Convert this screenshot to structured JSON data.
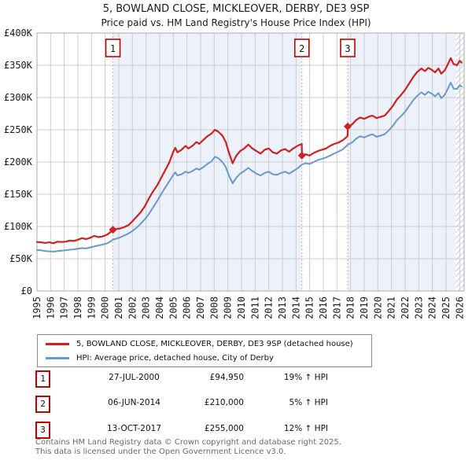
{
  "chart_data": {
    "type": "line",
    "title": "5, BOWLAND CLOSE, MICKLEOVER, DERBY, DE3 9SP",
    "subtitle": "Price paid vs. HM Land Registry's House Price Index (HPI)",
    "xlim": [
      1995,
      2026.33
    ],
    "ylim": [
      0,
      400000
    ],
    "grid": true,
    "legend_position": "below",
    "yticks": [
      {
        "value": 0,
        "label": "£0"
      },
      {
        "value": 50000,
        "label": "£50K"
      },
      {
        "value": 100000,
        "label": "£100K"
      },
      {
        "value": 150000,
        "label": "£150K"
      },
      {
        "value": 200000,
        "label": "£200K"
      },
      {
        "value": 250000,
        "label": "£250K"
      },
      {
        "value": 300000,
        "label": "£300K"
      },
      {
        "value": 350000,
        "label": "£350K"
      },
      {
        "value": 400000,
        "label": "£400K"
      }
    ],
    "xticks": [
      1995,
      1996,
      1997,
      1998,
      1999,
      2000,
      2001,
      2002,
      2003,
      2004,
      2005,
      2006,
      2007,
      2008,
      2009,
      2010,
      2011,
      2012,
      2013,
      2014,
      2015,
      2016,
      2017,
      2018,
      2019,
      2020,
      2021,
      2022,
      2023,
      2024,
      2025,
      2026
    ],
    "colors": {
      "price_paid": "#cc2222",
      "hpi": "#6699cc",
      "sale_line": "#f29a9a",
      "band": "#edf1fa",
      "grid": "#cccccc",
      "spine": "#aaaaaa",
      "hatch": "#c9cdd6",
      "box_border": "#c00000"
    },
    "ownership_bands": [
      {
        "from": 2000.57,
        "to": 2014.43
      },
      {
        "from": 2017.79,
        "to": 2025.7
      }
    ],
    "hatch_from": 2025.7,
    "sales": [
      {
        "num": "1",
        "x": 2000.57,
        "price": 94950
      },
      {
        "num": "2",
        "x": 2014.43,
        "price": 210000
      },
      {
        "num": "3",
        "x": 2017.79,
        "price": 255000
      }
    ],
    "series": [
      {
        "name": "5, BOWLAND CLOSE, MICKLEOVER, DERBY, DE3 9SP (detached house)",
        "color_key": "price_paid",
        "width": 2.2,
        "points": [
          [
            1995.0,
            76000
          ],
          [
            1995.3,
            75500
          ],
          [
            1995.6,
            74500
          ],
          [
            1995.9,
            75500
          ],
          [
            1996.2,
            74000
          ],
          [
            1996.5,
            76500
          ],
          [
            1996.8,
            76000
          ],
          [
            1997.1,
            76500
          ],
          [
            1997.4,
            78000
          ],
          [
            1997.7,
            77500
          ],
          [
            1998.0,
            79500
          ],
          [
            1998.3,
            82000
          ],
          [
            1998.6,
            80500
          ],
          [
            1998.9,
            82500
          ],
          [
            1999.2,
            85500
          ],
          [
            1999.5,
            83500
          ],
          [
            1999.8,
            84500
          ],
          [
            2000.1,
            87000
          ],
          [
            2000.35,
            90500
          ],
          [
            2000.57,
            94950
          ],
          [
            2000.8,
            96000
          ],
          [
            2001.1,
            97000
          ],
          [
            2001.4,
            99000
          ],
          [
            2001.7,
            102000
          ],
          [
            2002.0,
            108000
          ],
          [
            2002.3,
            115000
          ],
          [
            2002.6,
            122000
          ],
          [
            2002.9,
            131000
          ],
          [
            2003.2,
            143000
          ],
          [
            2003.5,
            154000
          ],
          [
            2003.8,
            163000
          ],
          [
            2004.1,
            175000
          ],
          [
            2004.4,
            187000
          ],
          [
            2004.7,
            199000
          ],
          [
            2005.0,
            216000
          ],
          [
            2005.15,
            222000
          ],
          [
            2005.3,
            215000
          ],
          [
            2005.6,
            219000
          ],
          [
            2005.9,
            225000
          ],
          [
            2006.1,
            221000
          ],
          [
            2006.4,
            225000
          ],
          [
            2006.7,
            231000
          ],
          [
            2006.9,
            228000
          ],
          [
            2007.2,
            234000
          ],
          [
            2007.5,
            240000
          ],
          [
            2007.8,
            244000
          ],
          [
            2008.05,
            250000
          ],
          [
            2008.3,
            247000
          ],
          [
            2008.6,
            241000
          ],
          [
            2008.85,
            231000
          ],
          [
            2009.1,
            213000
          ],
          [
            2009.35,
            198000
          ],
          [
            2009.6,
            209000
          ],
          [
            2009.9,
            217000
          ],
          [
            2010.2,
            221000
          ],
          [
            2010.5,
            227000
          ],
          [
            2010.8,
            221000
          ],
          [
            2011.1,
            217000
          ],
          [
            2011.4,
            213000
          ],
          [
            2011.7,
            219000
          ],
          [
            2012.0,
            221000
          ],
          [
            2012.3,
            215000
          ],
          [
            2012.6,
            213000
          ],
          [
            2012.9,
            218000
          ],
          [
            2013.2,
            220000
          ],
          [
            2013.5,
            216000
          ],
          [
            2013.8,
            221000
          ],
          [
            2014.1,
            225000
          ],
          [
            2014.42,
            228000
          ],
          [
            2014.44,
            210000
          ],
          [
            2014.7,
            212000
          ],
          [
            2015.0,
            210000
          ],
          [
            2015.3,
            214000
          ],
          [
            2015.6,
            217000
          ],
          [
            2015.9,
            219000
          ],
          [
            2016.2,
            221000
          ],
          [
            2016.5,
            225000
          ],
          [
            2016.8,
            228000
          ],
          [
            2017.1,
            230000
          ],
          [
            2017.45,
            234000
          ],
          [
            2017.78,
            240000
          ],
          [
            2017.8,
            255000
          ],
          [
            2018.1,
            258000
          ],
          [
            2018.4,
            265000
          ],
          [
            2018.7,
            269000
          ],
          [
            2019.0,
            267000
          ],
          [
            2019.3,
            270000
          ],
          [
            2019.6,
            272000
          ],
          [
            2019.9,
            268000
          ],
          [
            2020.2,
            270000
          ],
          [
            2020.5,
            272000
          ],
          [
            2020.8,
            279000
          ],
          [
            2021.1,
            287000
          ],
          [
            2021.4,
            297000
          ],
          [
            2021.7,
            304000
          ],
          [
            2022.0,
            312000
          ],
          [
            2022.3,
            322000
          ],
          [
            2022.6,
            332000
          ],
          [
            2022.9,
            340000
          ],
          [
            2023.2,
            345000
          ],
          [
            2023.45,
            341000
          ],
          [
            2023.7,
            346000
          ],
          [
            2023.95,
            343000
          ],
          [
            2024.2,
            339000
          ],
          [
            2024.45,
            345000
          ],
          [
            2024.65,
            337000
          ],
          [
            2024.9,
            342000
          ],
          [
            2025.1,
            350000
          ],
          [
            2025.35,
            361000
          ],
          [
            2025.55,
            352000
          ],
          [
            2025.8,
            350000
          ],
          [
            2026.0,
            357000
          ],
          [
            2026.15,
            354000
          ]
        ]
      },
      {
        "name": "HPI: Average price, detached house, City of Derby",
        "color_key": "hpi",
        "width": 2,
        "points": [
          [
            1995.0,
            63500
          ],
          [
            1995.3,
            63000
          ],
          [
            1995.6,
            62000
          ],
          [
            1995.9,
            61500
          ],
          [
            1996.2,
            61000
          ],
          [
            1996.5,
            62000
          ],
          [
            1996.8,
            62500
          ],
          [
            1997.1,
            63000
          ],
          [
            1997.4,
            64000
          ],
          [
            1997.7,
            64500
          ],
          [
            1998.0,
            65500
          ],
          [
            1998.3,
            66500
          ],
          [
            1998.6,
            66000
          ],
          [
            1998.9,
            67500
          ],
          [
            1999.2,
            69000
          ],
          [
            1999.5,
            70500
          ],
          [
            1999.8,
            72000
          ],
          [
            2000.1,
            73500
          ],
          [
            2000.35,
            76000
          ],
          [
            2000.57,
            79800
          ],
          [
            2000.8,
            81000
          ],
          [
            2001.1,
            83000
          ],
          [
            2001.4,
            86000
          ],
          [
            2001.7,
            89000
          ],
          [
            2002.0,
            93000
          ],
          [
            2002.3,
            98000
          ],
          [
            2002.6,
            104000
          ],
          [
            2002.9,
            111000
          ],
          [
            2003.2,
            119000
          ],
          [
            2003.5,
            129000
          ],
          [
            2003.8,
            139000
          ],
          [
            2004.1,
            150000
          ],
          [
            2004.4,
            160000
          ],
          [
            2004.7,
            170000
          ],
          [
            2005.0,
            180000
          ],
          [
            2005.15,
            184000
          ],
          [
            2005.3,
            179000
          ],
          [
            2005.6,
            181000
          ],
          [
            2005.9,
            185000
          ],
          [
            2006.1,
            183000
          ],
          [
            2006.4,
            186000
          ],
          [
            2006.7,
            190000
          ],
          [
            2006.9,
            188000
          ],
          [
            2007.2,
            192000
          ],
          [
            2007.5,
            197000
          ],
          [
            2007.8,
            201000
          ],
          [
            2008.05,
            208000
          ],
          [
            2008.3,
            206000
          ],
          [
            2008.6,
            200000
          ],
          [
            2008.85,
            192000
          ],
          [
            2009.1,
            178000
          ],
          [
            2009.35,
            167000
          ],
          [
            2009.6,
            175000
          ],
          [
            2009.9,
            182000
          ],
          [
            2010.2,
            186000
          ],
          [
            2010.5,
            191000
          ],
          [
            2010.8,
            186000
          ],
          [
            2011.1,
            182000
          ],
          [
            2011.4,
            179000
          ],
          [
            2011.7,
            183000
          ],
          [
            2012.0,
            185000
          ],
          [
            2012.3,
            181000
          ],
          [
            2012.6,
            180000
          ],
          [
            2012.9,
            183000
          ],
          [
            2013.2,
            185000
          ],
          [
            2013.5,
            182000
          ],
          [
            2013.8,
            186000
          ],
          [
            2014.1,
            190000
          ],
          [
            2014.43,
            196000
          ],
          [
            2014.7,
            198000
          ],
          [
            2015.0,
            197000
          ],
          [
            2015.3,
            200000
          ],
          [
            2015.6,
            203000
          ],
          [
            2015.9,
            205000
          ],
          [
            2016.2,
            207000
          ],
          [
            2016.5,
            210000
          ],
          [
            2016.8,
            213000
          ],
          [
            2017.1,
            216000
          ],
          [
            2017.45,
            220000
          ],
          [
            2017.8,
            227000
          ],
          [
            2018.1,
            230000
          ],
          [
            2018.4,
            236000
          ],
          [
            2018.7,
            240000
          ],
          [
            2019.0,
            238000
          ],
          [
            2019.3,
            241000
          ],
          [
            2019.6,
            243000
          ],
          [
            2019.9,
            239000
          ],
          [
            2020.2,
            241000
          ],
          [
            2020.5,
            243000
          ],
          [
            2020.8,
            249000
          ],
          [
            2021.1,
            256000
          ],
          [
            2021.4,
            265000
          ],
          [
            2021.7,
            271000
          ],
          [
            2022.0,
            278000
          ],
          [
            2022.3,
            287000
          ],
          [
            2022.6,
            296000
          ],
          [
            2022.9,
            303000
          ],
          [
            2023.2,
            308000
          ],
          [
            2023.45,
            304000
          ],
          [
            2023.7,
            309000
          ],
          [
            2023.95,
            306000
          ],
          [
            2024.2,
            302000
          ],
          [
            2024.45,
            307000
          ],
          [
            2024.65,
            299000
          ],
          [
            2024.9,
            304000
          ],
          [
            2025.1,
            312000
          ],
          [
            2025.35,
            323000
          ],
          [
            2025.55,
            314000
          ],
          [
            2025.8,
            313000
          ],
          [
            2026.0,
            319000
          ],
          [
            2026.15,
            317000
          ]
        ]
      }
    ]
  },
  "legend": {
    "items": [
      {
        "label": "5, BOWLAND CLOSE, MICKLEOVER, DERBY, DE3 9SP (detached house)"
      },
      {
        "label": "HPI: Average price, detached house, City of Derby"
      }
    ]
  },
  "sales_table": {
    "rows": [
      {
        "num": "1",
        "date": "27-JUL-2000",
        "price": "£94,950",
        "hpi": "19% ↑ HPI"
      },
      {
        "num": "2",
        "date": "06-JUN-2014",
        "price": "£210,000",
        "hpi": "5% ↑ HPI"
      },
      {
        "num": "3",
        "date": "13-OCT-2017",
        "price": "£255,000",
        "hpi": "12% ↑ HPI"
      }
    ]
  },
  "footer": {
    "line1": "Contains HM Land Registry data © Crown copyright and database right 2025.",
    "line2": "This data is licensed under the Open Government Licence v3.0."
  }
}
